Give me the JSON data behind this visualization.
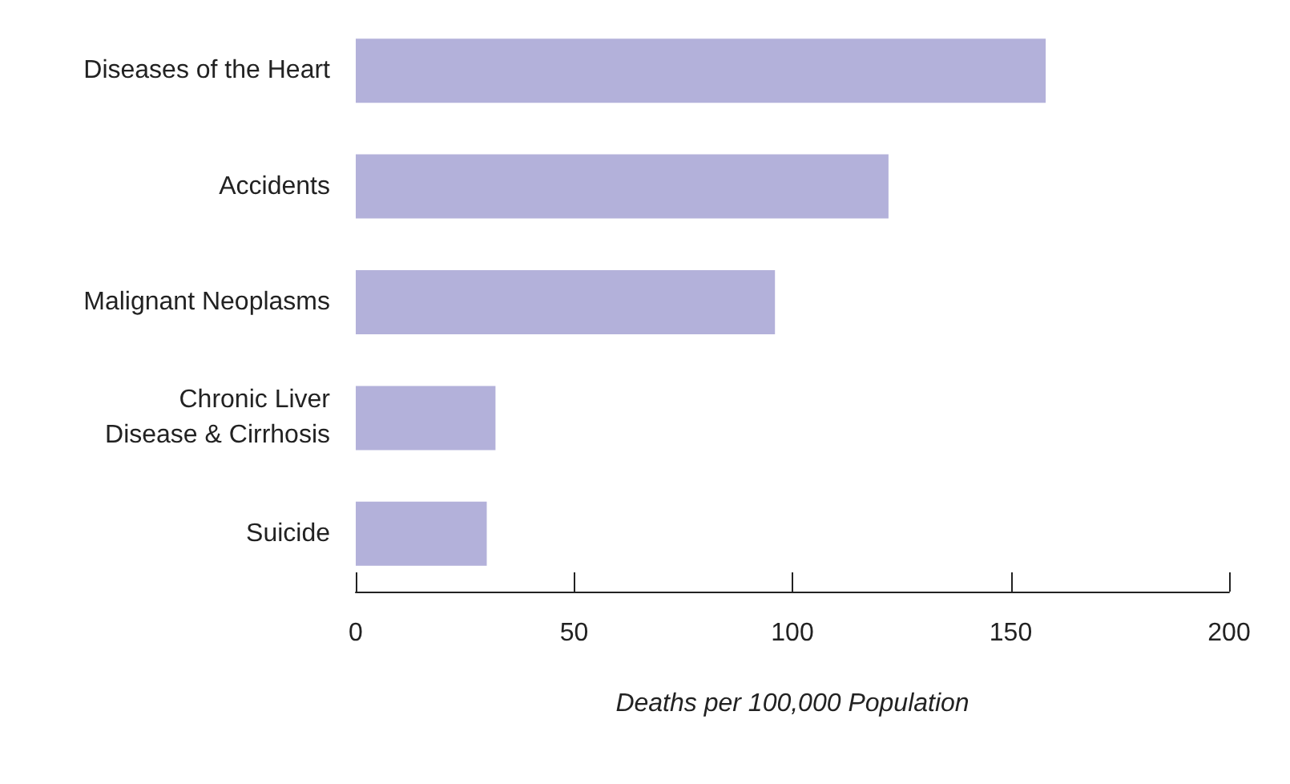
{
  "chart_data": {
    "type": "bar",
    "orientation": "horizontal",
    "categories": [
      "Diseases of the Heart",
      "Accidents",
      "Malignant Neoplasms",
      "Chronic Liver\nDisease & Cirrhosis",
      "Suicide"
    ],
    "values": [
      158,
      122,
      96,
      32,
      30
    ],
    "color": "#b3b1da",
    "xlim": [
      0,
      200
    ],
    "xticks": [
      0,
      50,
      100,
      150,
      200
    ],
    "xlabel": "Deaths per 100,000 Population",
    "grid": false
  }
}
